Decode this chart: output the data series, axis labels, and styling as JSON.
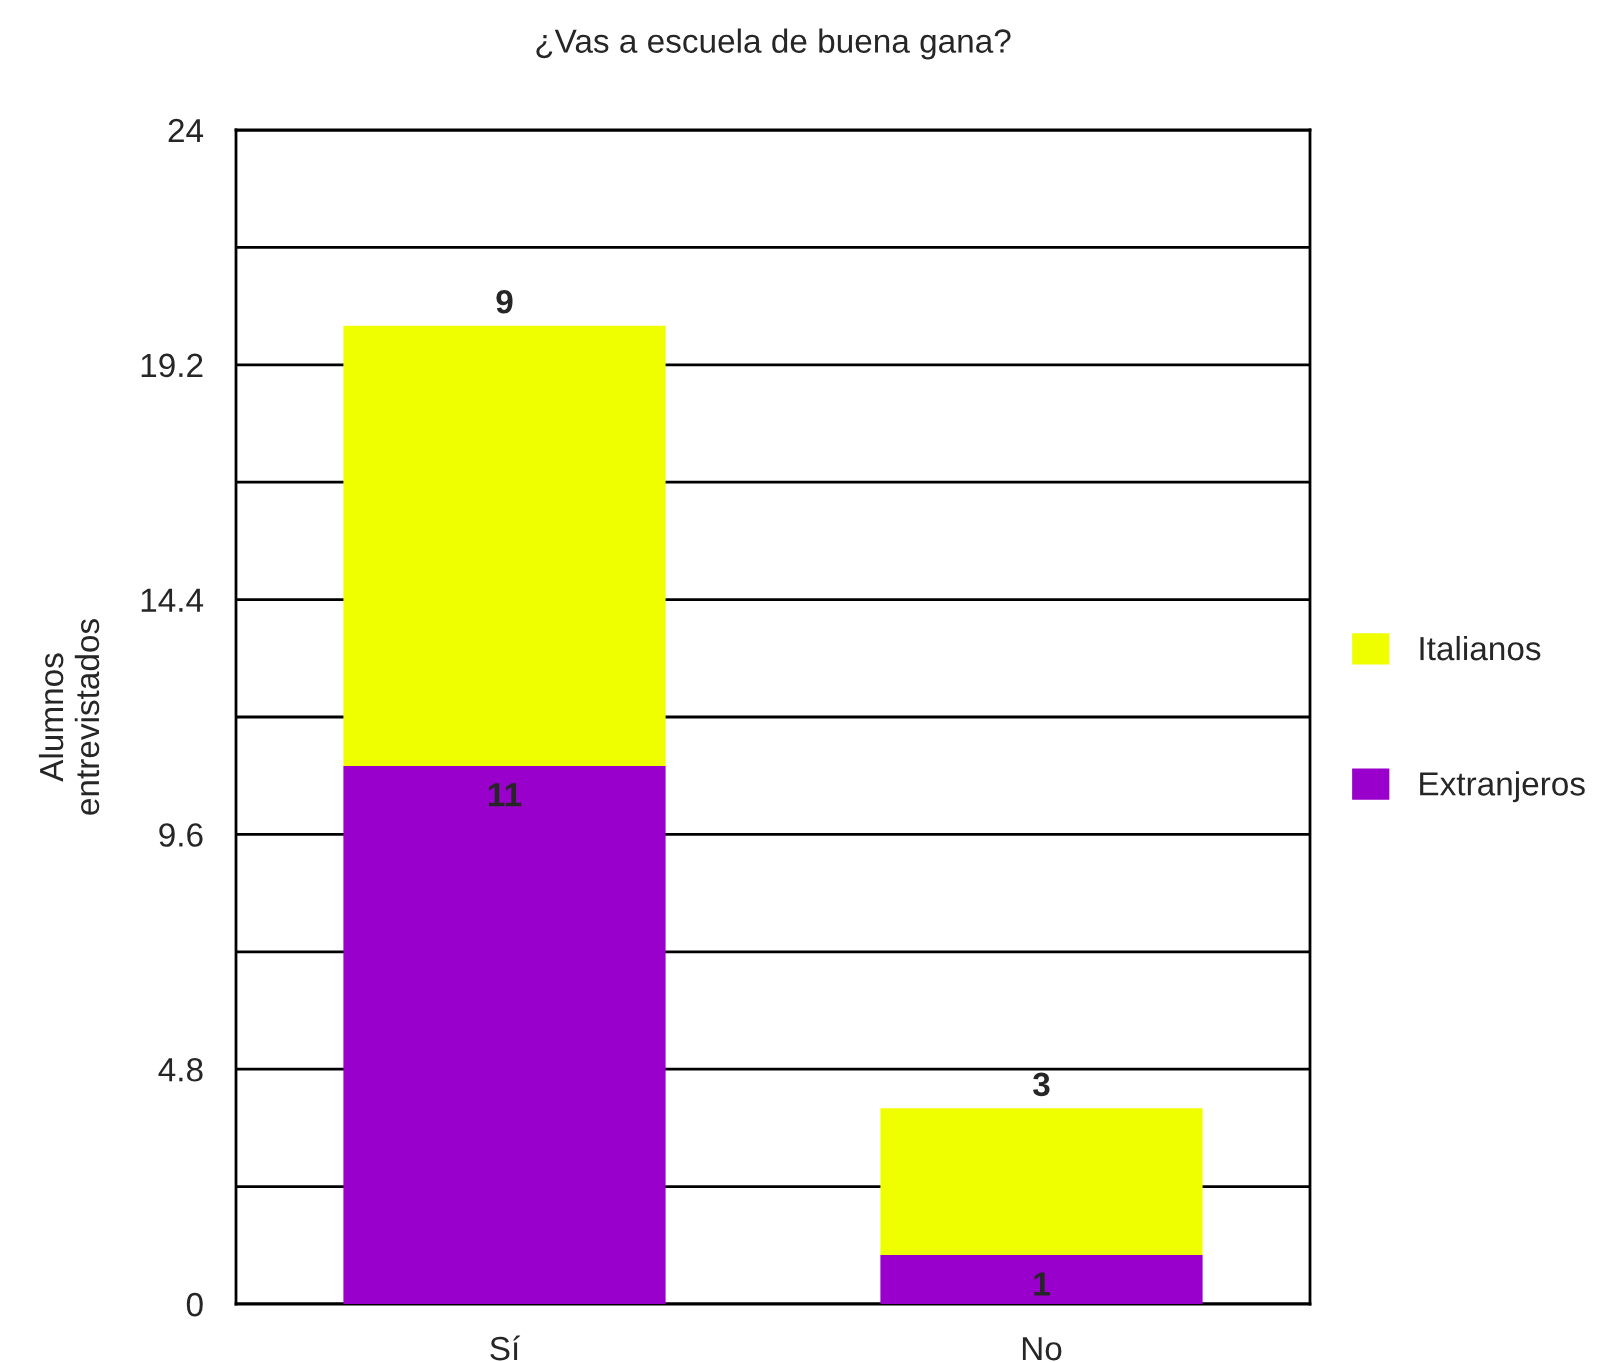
{
  "chart_data": {
    "type": "bar",
    "title": "¿Vas a escuela de buena gana?",
    "ylabel": "Alumnos\nentrevistados",
    "categories": [
      "Sí",
      "No"
    ],
    "stacked": true,
    "series": [
      {
        "name": "Extranjeros",
        "color": "#9900cc",
        "values": [
          11,
          1
        ]
      },
      {
        "name": "Italianos",
        "color": "#f0ff00",
        "values": [
          9,
          3
        ]
      }
    ],
    "ylim": [
      0,
      24
    ],
    "yticks": [
      0,
      {
        "value": 2.4,
        "label": null
      },
      4.8,
      {
        "value": 7.2,
        "label": null
      },
      9.6,
      {
        "value": 12,
        "label": null
      },
      14.4,
      {
        "value": 16.8,
        "label": null
      },
      19.2,
      {
        "value": 21.6,
        "label": null
      },
      24
    ],
    "grid": "y",
    "legend": "right",
    "data_labels": true
  }
}
